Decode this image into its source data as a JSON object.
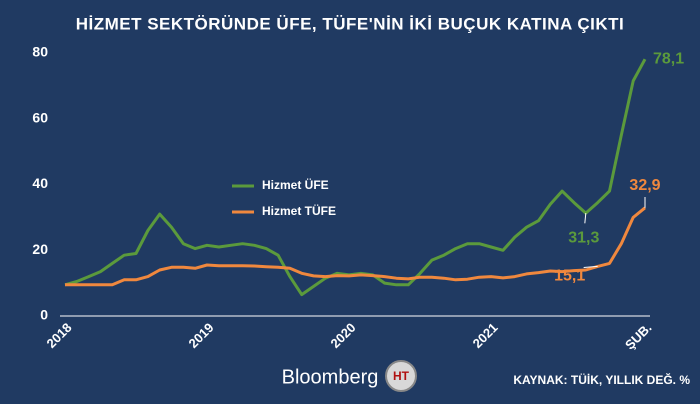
{
  "chart_data": {
    "type": "line",
    "title": "HİZMET SEKTÖRÜNDE ÜFE, TÜFE'NİN İKİ BUÇUK KATINA ÇIKTI",
    "categories": [
      "2018",
      null,
      null,
      null,
      null,
      null,
      null,
      null,
      null,
      null,
      null,
      null,
      "2019",
      null,
      null,
      null,
      null,
      null,
      null,
      null,
      null,
      null,
      null,
      null,
      "2020",
      null,
      null,
      null,
      null,
      null,
      null,
      null,
      null,
      null,
      null,
      null,
      "2021",
      null,
      null,
      null,
      null,
      null,
      null,
      null,
      null,
      null,
      null,
      null,
      null,
      "ŞUB."
    ],
    "series": [
      {
        "name": "Hizmet ÜFE",
        "color": "#5b9a3c",
        "values": [
          9.5,
          10.5,
          12,
          13.5,
          16,
          18.5,
          19,
          26,
          31,
          27,
          22,
          20.5,
          21.5,
          21,
          21.5,
          22,
          21.5,
          20.5,
          18.5,
          12,
          6.5,
          9,
          11.5,
          13,
          12.5,
          13,
          12.5,
          10,
          9.5,
          9.5,
          13,
          17,
          18.5,
          20.5,
          22,
          22,
          21,
          20,
          24,
          27,
          29,
          34,
          38,
          34.5,
          31.3,
          34.5,
          38,
          55,
          71.5,
          78.1
        ],
        "value_labels": [
          null,
          null,
          null,
          null,
          null,
          null,
          null,
          null,
          null,
          null,
          null,
          null,
          null,
          null,
          null,
          null,
          null,
          null,
          null,
          null,
          null,
          null,
          null,
          null,
          null,
          null,
          null,
          null,
          null,
          null,
          null,
          null,
          null,
          null,
          null,
          null,
          null,
          null,
          null,
          null,
          null,
          null,
          null,
          null,
          "31,3",
          null,
          null,
          null,
          null,
          "78,1"
        ]
      },
      {
        "name": "Hizmet TÜFE",
        "color": "#f0883e",
        "values": [
          9.5,
          9.5,
          9.5,
          9.5,
          9.5,
          11,
          11,
          12,
          14,
          14.8,
          14.8,
          14.5,
          15.5,
          15.3,
          15.3,
          15.3,
          15.2,
          15,
          14.8,
          14.5,
          13,
          12.2,
          12,
          12.3,
          12.2,
          12.5,
          12.3,
          12,
          11.5,
          11.3,
          11.8,
          11.8,
          11.5,
          11,
          11.2,
          11.8,
          12,
          11.6,
          12,
          12.8,
          13.2,
          13.7,
          13.5,
          13.8,
          14,
          15.1,
          16,
          22,
          30,
          32.9
        ],
        "value_labels": [
          null,
          null,
          null,
          null,
          null,
          null,
          null,
          null,
          null,
          null,
          null,
          null,
          null,
          null,
          null,
          null,
          null,
          null,
          null,
          null,
          null,
          null,
          null,
          null,
          null,
          null,
          null,
          null,
          null,
          null,
          null,
          null,
          null,
          null,
          null,
          null,
          null,
          null,
          null,
          null,
          null,
          null,
          null,
          null,
          null,
          "15,1",
          null,
          null,
          null,
          "32,9"
        ]
      }
    ],
    "ylim": [
      0,
      80
    ],
    "yticks": [
      0,
      20,
      40,
      60,
      80
    ],
    "legend": "center-left",
    "brand": "Bloomberg",
    "logo_text": "HT",
    "source": "KAYNAK: TÜİK, YILLIK DEĞ. %"
  }
}
